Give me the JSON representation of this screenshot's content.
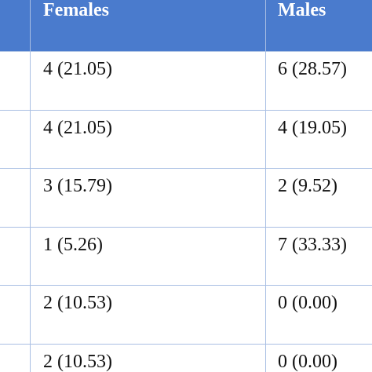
{
  "table": {
    "header": [
      "Females",
      "Males"
    ],
    "rows": [
      [
        "4 (21.05)",
        "6 (28.57)"
      ],
      [
        "4 (21.05)",
        "4 (19.05)"
      ],
      [
        "3 (15.79)",
        "2 (9.52)"
      ],
      [
        "1 (5.26)",
        "7 (33.33)"
      ],
      [
        "2 (10.53)",
        "0 (0.00)"
      ],
      [
        "2 (10.53)",
        "0 (0.00)"
      ]
    ]
  }
}
